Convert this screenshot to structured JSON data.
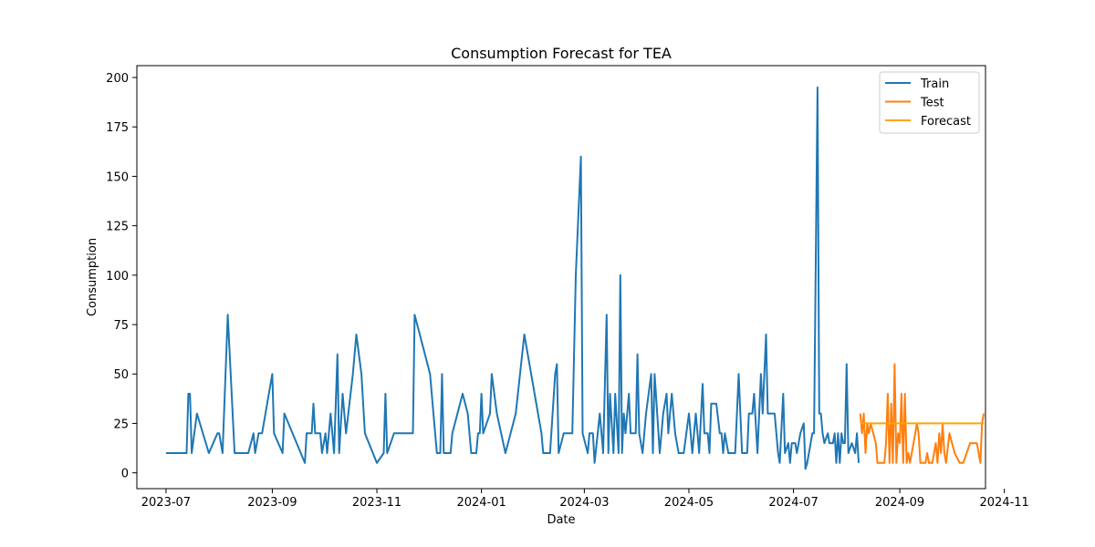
{
  "chart_data": {
    "type": "line",
    "title": "Consumption Forecast for TEA",
    "xlabel": "Date",
    "ylabel": "Consumption",
    "xlim": [
      "2023-06-14",
      "2024-10-21"
    ],
    "ylim": [
      -8,
      206
    ],
    "x_ticks": [
      {
        "date": "2023-07-01",
        "label": "2023-07"
      },
      {
        "date": "2023-09-01",
        "label": "2023-09"
      },
      {
        "date": "2023-11-01",
        "label": "2023-11"
      },
      {
        "date": "2024-01-01",
        "label": "2024-01"
      },
      {
        "date": "2024-03-01",
        "label": "2024-03"
      },
      {
        "date": "2024-05-01",
        "label": "2024-05"
      },
      {
        "date": "2024-07-01",
        "label": "2024-07"
      },
      {
        "date": "2024-09-01",
        "label": "2024-09"
      },
      {
        "date": "2024-11-01",
        "label": "2024-11"
      }
    ],
    "y_ticks": [
      0,
      25,
      50,
      75,
      100,
      125,
      150,
      175,
      200
    ],
    "grid": false,
    "legend_position": "top-right",
    "series": [
      {
        "name": "Train",
        "color": "#1f77b4",
        "points": [
          [
            "2023-07-01",
            10
          ],
          [
            "2023-07-13",
            10
          ],
          [
            "2023-07-14",
            40
          ],
          [
            "2023-07-15",
            40
          ],
          [
            "2023-07-16",
            10
          ],
          [
            "2023-07-19",
            30
          ],
          [
            "2023-07-26",
            10
          ],
          [
            "2023-07-31",
            20
          ],
          [
            "2023-08-01",
            20
          ],
          [
            "2023-08-03",
            10
          ],
          [
            "2023-08-06",
            80
          ],
          [
            "2023-08-10",
            10
          ],
          [
            "2023-08-18",
            10
          ],
          [
            "2023-08-21",
            20
          ],
          [
            "2023-08-22",
            10
          ],
          [
            "2023-08-24",
            20
          ],
          [
            "2023-08-26",
            20
          ],
          [
            "2023-09-01",
            50
          ],
          [
            "2023-09-02",
            20
          ],
          [
            "2023-09-07",
            10
          ],
          [
            "2023-09-08",
            30
          ],
          [
            "2023-09-20",
            5
          ],
          [
            "2023-09-21",
            20
          ],
          [
            "2023-09-24",
            20
          ],
          [
            "2023-09-25",
            35
          ],
          [
            "2023-09-26",
            20
          ],
          [
            "2023-09-29",
            20
          ],
          [
            "2023-09-30",
            10
          ],
          [
            "2023-10-02",
            20
          ],
          [
            "2023-10-03",
            10
          ],
          [
            "2023-10-05",
            30
          ],
          [
            "2023-10-07",
            10
          ],
          [
            "2023-10-09",
            60
          ],
          [
            "2023-10-10",
            10
          ],
          [
            "2023-10-12",
            40
          ],
          [
            "2023-10-14",
            20
          ],
          [
            "2023-10-18",
            50
          ],
          [
            "2023-10-20",
            70
          ],
          [
            "2023-10-23",
            50
          ],
          [
            "2023-10-25",
            20
          ],
          [
            "2023-11-01",
            5
          ],
          [
            "2023-11-05",
            10
          ],
          [
            "2023-11-06",
            40
          ],
          [
            "2023-11-07",
            10
          ],
          [
            "2023-11-11",
            20
          ],
          [
            "2023-11-20",
            20
          ],
          [
            "2023-11-21",
            20
          ],
          [
            "2023-11-22",
            20
          ],
          [
            "2023-11-23",
            80
          ],
          [
            "2023-12-02",
            50
          ],
          [
            "2023-12-04",
            30
          ],
          [
            "2023-12-06",
            10
          ],
          [
            "2023-12-08",
            10
          ],
          [
            "2023-12-09",
            50
          ],
          [
            "2023-12-10",
            10
          ],
          [
            "2023-12-14",
            10
          ],
          [
            "2023-12-15",
            20
          ],
          [
            "2023-12-21",
            40
          ],
          [
            "2023-12-24",
            30
          ],
          [
            "2023-12-26",
            10
          ],
          [
            "2023-12-29",
            10
          ],
          [
            "2023-12-30",
            20
          ],
          [
            "2023-12-31",
            20
          ],
          [
            "2024-01-01",
            40
          ],
          [
            "2024-01-02",
            20
          ],
          [
            "2024-01-06",
            30
          ],
          [
            "2024-01-07",
            50
          ],
          [
            "2024-01-10",
            30
          ],
          [
            "2024-01-15",
            10
          ],
          [
            "2024-01-21",
            30
          ],
          [
            "2024-01-26",
            70
          ],
          [
            "2024-02-03",
            30
          ],
          [
            "2024-02-05",
            20
          ],
          [
            "2024-02-06",
            10
          ],
          [
            "2024-02-10",
            10
          ],
          [
            "2024-02-13",
            50
          ],
          [
            "2024-02-14",
            55
          ],
          [
            "2024-02-15",
            10
          ],
          [
            "2024-02-18",
            20
          ],
          [
            "2024-02-23",
            20
          ],
          [
            "2024-02-25",
            100
          ],
          [
            "2024-02-28",
            160
          ],
          [
            "2024-02-29",
            20
          ],
          [
            "2024-03-03",
            10
          ],
          [
            "2024-03-04",
            20
          ],
          [
            "2024-03-06",
            20
          ],
          [
            "2024-03-07",
            5
          ],
          [
            "2024-03-10",
            30
          ],
          [
            "2024-03-11",
            20
          ],
          [
            "2024-03-12",
            10
          ],
          [
            "2024-03-14",
            80
          ],
          [
            "2024-03-15",
            10
          ],
          [
            "2024-03-16",
            40
          ],
          [
            "2024-03-18",
            10
          ],
          [
            "2024-03-19",
            40
          ],
          [
            "2024-03-21",
            10
          ],
          [
            "2024-03-22",
            100
          ],
          [
            "2024-03-23",
            10
          ],
          [
            "2024-03-24",
            30
          ],
          [
            "2024-03-25",
            20
          ],
          [
            "2024-03-27",
            40
          ],
          [
            "2024-03-28",
            20
          ],
          [
            "2024-03-31",
            20
          ],
          [
            "2024-04-01",
            60
          ],
          [
            "2024-04-02",
            20
          ],
          [
            "2024-04-04",
            10
          ],
          [
            "2024-04-06",
            30
          ],
          [
            "2024-04-09",
            50
          ],
          [
            "2024-04-10",
            10
          ],
          [
            "2024-04-11",
            50
          ],
          [
            "2024-04-14",
            10
          ],
          [
            "2024-04-16",
            30
          ],
          [
            "2024-04-18",
            40
          ],
          [
            "2024-04-19",
            20
          ],
          [
            "2024-04-21",
            40
          ],
          [
            "2024-04-23",
            20
          ],
          [
            "2024-04-25",
            10
          ],
          [
            "2024-04-28",
            10
          ],
          [
            "2024-05-01",
            30
          ],
          [
            "2024-05-03",
            10
          ],
          [
            "2024-05-05",
            30
          ],
          [
            "2024-05-06",
            20
          ],
          [
            "2024-05-07",
            10
          ],
          [
            "2024-05-09",
            45
          ],
          [
            "2024-05-10",
            20
          ],
          [
            "2024-05-12",
            20
          ],
          [
            "2024-05-13",
            10
          ],
          [
            "2024-05-14",
            35
          ],
          [
            "2024-05-17",
            35
          ],
          [
            "2024-05-19",
            20
          ],
          [
            "2024-05-20",
            20
          ],
          [
            "2024-05-21",
            10
          ],
          [
            "2024-05-22",
            20
          ],
          [
            "2024-05-24",
            10
          ],
          [
            "2024-05-28",
            10
          ],
          [
            "2024-05-30",
            50
          ],
          [
            "2024-06-01",
            10
          ],
          [
            "2024-06-04",
            10
          ],
          [
            "2024-06-05",
            30
          ],
          [
            "2024-06-07",
            30
          ],
          [
            "2024-06-08",
            40
          ],
          [
            "2024-06-10",
            10
          ],
          [
            "2024-06-12",
            50
          ],
          [
            "2024-06-13",
            30
          ],
          [
            "2024-06-15",
            70
          ],
          [
            "2024-06-16",
            30
          ],
          [
            "2024-06-18",
            30
          ],
          [
            "2024-06-20",
            30
          ],
          [
            "2024-06-22",
            10
          ],
          [
            "2024-06-23",
            5
          ],
          [
            "2024-06-25",
            40
          ],
          [
            "2024-06-26",
            10
          ],
          [
            "2024-06-28",
            15
          ],
          [
            "2024-06-29",
            5
          ],
          [
            "2024-06-30",
            15
          ],
          [
            "2024-07-02",
            15
          ],
          [
            "2024-07-03",
            10
          ],
          [
            "2024-07-05",
            20
          ],
          [
            "2024-07-07",
            25
          ],
          [
            "2024-07-08",
            2
          ],
          [
            "2024-07-09",
            5
          ],
          [
            "2024-07-11",
            15
          ],
          [
            "2024-07-12",
            20
          ],
          [
            "2024-07-13",
            20
          ],
          [
            "2024-07-15",
            195
          ],
          [
            "2024-07-16",
            30
          ],
          [
            "2024-07-17",
            30
          ],
          [
            "2024-07-18",
            20
          ],
          [
            "2024-07-19",
            15
          ],
          [
            "2024-07-21",
            20
          ],
          [
            "2024-07-22",
            15
          ],
          [
            "2024-07-24",
            15
          ],
          [
            "2024-07-25",
            20
          ],
          [
            "2024-07-26",
            5
          ],
          [
            "2024-07-27",
            20
          ],
          [
            "2024-07-28",
            5
          ],
          [
            "2024-07-29",
            20
          ],
          [
            "2024-07-30",
            15
          ],
          [
            "2024-07-31",
            15
          ],
          [
            "2024-08-01",
            55
          ],
          [
            "2024-08-02",
            10
          ],
          [
            "2024-08-04",
            15
          ],
          [
            "2024-08-06",
            10
          ],
          [
            "2024-08-07",
            20
          ],
          [
            "2024-08-08",
            5
          ]
        ]
      },
      {
        "name": "Test",
        "color": "#ff7f0e",
        "points": [
          [
            "2024-08-09",
            30
          ],
          [
            "2024-08-10",
            20
          ],
          [
            "2024-08-11",
            30
          ],
          [
            "2024-08-12",
            10
          ],
          [
            "2024-08-13",
            25
          ],
          [
            "2024-08-14",
            20
          ],
          [
            "2024-08-15",
            25
          ],
          [
            "2024-08-18",
            15
          ],
          [
            "2024-08-19",
            5
          ],
          [
            "2024-08-23",
            5
          ],
          [
            "2024-08-24",
            15
          ],
          [
            "2024-08-25",
            40
          ],
          [
            "2024-08-26",
            5
          ],
          [
            "2024-08-27",
            35
          ],
          [
            "2024-08-28",
            5
          ],
          [
            "2024-08-29",
            55
          ],
          [
            "2024-08-30",
            5
          ],
          [
            "2024-08-31",
            20
          ],
          [
            "2024-09-01",
            15
          ],
          [
            "2024-09-02",
            40
          ],
          [
            "2024-09-03",
            5
          ],
          [
            "2024-09-04",
            40
          ],
          [
            "2024-09-05",
            5
          ],
          [
            "2024-09-06",
            10
          ],
          [
            "2024-09-07",
            5
          ],
          [
            "2024-09-08",
            10
          ],
          [
            "2024-09-10",
            20
          ],
          [
            "2024-09-11",
            25
          ],
          [
            "2024-09-12",
            20
          ],
          [
            "2024-09-13",
            5
          ],
          [
            "2024-09-16",
            5
          ],
          [
            "2024-09-17",
            10
          ],
          [
            "2024-09-18",
            5
          ],
          [
            "2024-09-20",
            5
          ],
          [
            "2024-09-21",
            10
          ],
          [
            "2024-09-22",
            15
          ],
          [
            "2024-09-23",
            5
          ],
          [
            "2024-09-24",
            20
          ],
          [
            "2024-09-25",
            10
          ],
          [
            "2024-09-26",
            25
          ],
          [
            "2024-09-27",
            10
          ],
          [
            "2024-09-28",
            5
          ],
          [
            "2024-09-30",
            20
          ],
          [
            "2024-10-03",
            10
          ],
          [
            "2024-10-06",
            5
          ],
          [
            "2024-10-08",
            5
          ],
          [
            "2024-10-12",
            15
          ],
          [
            "2024-10-15",
            15
          ],
          [
            "2024-10-16",
            15
          ],
          [
            "2024-10-17",
            10
          ],
          [
            "2024-10-18",
            5
          ],
          [
            "2024-10-19",
            25
          ],
          [
            "2024-10-20",
            30
          ]
        ]
      },
      {
        "name": "Forecast",
        "color": "#ffa500",
        "points": [
          [
            "2024-08-09",
            25
          ],
          [
            "2024-10-20",
            25
          ]
        ]
      }
    ]
  }
}
